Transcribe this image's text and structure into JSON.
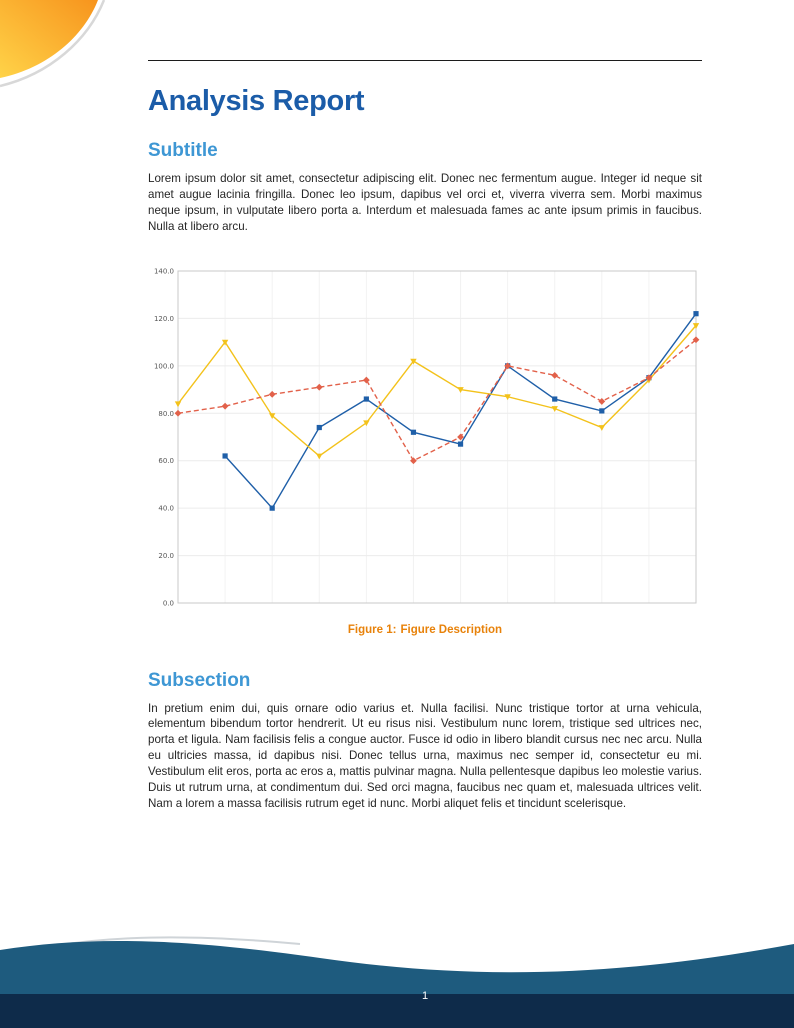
{
  "document": {
    "title": "Analysis Report",
    "sections": {
      "subtitle": {
        "heading": "Subtitle",
        "body": "Lorem ipsum dolor sit amet, consectetur adipiscing elit. Donec nec fermentum augue. Integer id neque sit amet augue lacinia fringilla. Donec leo ipsum, dapibus vel orci et, viverra viverra sem. Morbi maximus neque ipsum, in vulputate libero porta a. Interdum et malesuada fames ac ante ipsum primis in faucibus. Nulla at libero arcu."
      },
      "subsection": {
        "heading": "Subsection",
        "body": "In pretium enim dui, quis ornare odio varius et. Nulla facilisi. Nunc tristique tortor at urna vehicula, elementum bibendum tortor hendrerit. Ut eu risus nisi. Vestibulum nunc lorem, tristique sed ultrices nec, porta et ligula. Nam facilisis felis a congue auctor. Fusce id odio in libero blandit cursus nec nec arcu. Nulla eu ultricies massa, id dapibus nisi. Donec tellus urna, maximus nec semper id, consectetur eu mi. Vestibulum elit eros, porta ac eros a, mattis pulvinar magna. Nulla pellentesque dapibus leo molestie varius. Duis ut rutrum urna, at condimentum dui. Sed orci magna, faucibus nec quam et, malesuada ultrices velit. Nam a lorem a massa facilisis rutrum eget id nunc. Morbi aliquet felis et tincidunt scelerisque."
      }
    },
    "figure": {
      "caption_label": "Figure 1:",
      "caption_text": "Figure Description"
    },
    "footer": {
      "page_number": "1"
    }
  },
  "colors": {
    "title_blue": "#1b5ca8",
    "heading_blue": "#3e97d4",
    "caption_orange": "#e8820a",
    "footer_wave": "#1e5b7e",
    "footer_strip": "#0e2b4a",
    "swoosh_orange": "#f7941d",
    "swoosh_yellow": "#ffd348"
  },
  "chart_data": {
    "type": "line",
    "title": "",
    "xlabel": "",
    "ylabel": "",
    "x": [
      1,
      2,
      3,
      4,
      5,
      6,
      7,
      8,
      9,
      10,
      11,
      12
    ],
    "series": [
      {
        "name": "series-blue",
        "color": "#1f5fa8",
        "style": "solid",
        "marker": "square",
        "values": [
          null,
          62,
          40,
          74,
          86,
          72,
          67,
          100,
          86,
          81,
          95,
          122
        ]
      },
      {
        "name": "series-yellow",
        "color": "#f3c21b",
        "style": "solid",
        "marker": "triangle",
        "values": [
          84,
          110,
          79,
          62,
          76,
          102,
          90,
          87,
          82,
          74,
          94,
          117
        ]
      },
      {
        "name": "series-red",
        "color": "#e2614a",
        "style": "dashed",
        "marker": "diamond",
        "values": [
          80,
          83,
          88,
          91,
          94,
          60,
          70,
          100,
          96,
          85,
          95,
          111
        ]
      }
    ],
    "ylim": [
      0,
      140
    ],
    "ytick_step": 20,
    "ytick_labels": [
      "0.0",
      "20.0",
      "40.0",
      "60.0",
      "80.0",
      "100.0",
      "120.0",
      "140.0"
    ],
    "xtick_labels": [],
    "grid": true,
    "legend": "none"
  }
}
